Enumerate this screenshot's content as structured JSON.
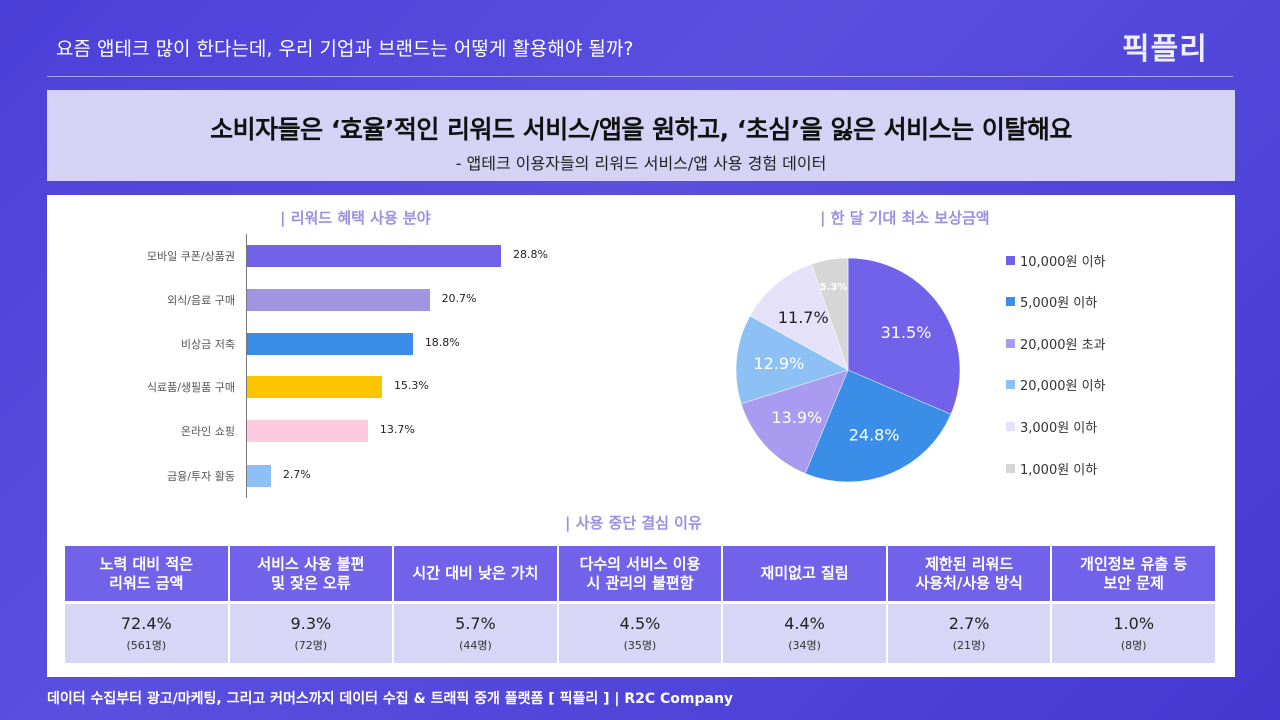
{
  "header": {
    "text": "요즘 앱테크 많이 한다는데, 우리 기업과 브랜드는 어떻게 활용해야 될까?",
    "logo": "픽플리"
  },
  "title": {
    "main": "소비자들은 ‘효율’적인 리워드 서비스/앱을 원하고, ‘초심’을 잃은 서비스는 이탈해요",
    "sub": "- 앱테크 이용자들의 리워드 서비스/앱 사용 경험 데이터"
  },
  "chart_data": [
    {
      "type": "bar",
      "orientation": "horizontal",
      "title": "| 리워드 혜택 사용 분야",
      "categories": [
        "모바일 쿠폰/상품권",
        "외식/음료 구매",
        "비상금 저축",
        "식료품/생필품 구매",
        "온라인 쇼핑",
        "금융/투자 활동"
      ],
      "values": [
        28.8,
        20.7,
        18.8,
        15.3,
        13.7,
        2.7
      ],
      "labels": [
        "28.8%",
        "20.7%",
        "18.8%",
        "15.3%",
        "13.7%",
        "2.7%"
      ],
      "colors": [
        "#7262ea",
        "#a195e0",
        "#3a8ee8",
        "#fdc400",
        "#fdc9de",
        "#8dc1f5"
      ]
    },
    {
      "type": "pie",
      "title": "| 한 달 기대 최소 보상금액",
      "categories": [
        "10,000원 이하",
        "5,000원 이하",
        "20,000원 초과",
        "20,000원 이하",
        "3,000원 이하",
        "1,000원 이하"
      ],
      "values": [
        31.5,
        24.8,
        13.9,
        12.9,
        11.7,
        5.3
      ],
      "labels": [
        "31.5%",
        "24.8%",
        "13.9%",
        "12.9%",
        "11.7%",
        "5.3%"
      ],
      "colors": [
        "#7262ea",
        "#3a8ee8",
        "#a99cf0",
        "#8dc1f5",
        "#e4e1f8",
        "#d6d6d6"
      ],
      "legend": "right"
    }
  ],
  "table": {
    "title": "| 사용 중단 결심 이유",
    "columns": [
      {
        "h1": "노력 대비 적은",
        "h2": "리워드 금액",
        "pct": "72.4%",
        "count": "(561명)"
      },
      {
        "h1": "서비스 사용 불편",
        "h2": "및 잦은 오류",
        "pct": "9.3%",
        "count": "(72명)"
      },
      {
        "h1": "시간 대비 낮은 가치",
        "h2": "",
        "pct": "5.7%",
        "count": "(44명)"
      },
      {
        "h1": "다수의 서비스 이용",
        "h2": "시 관리의 불편함",
        "pct": "4.5%",
        "count": "(35명)"
      },
      {
        "h1": "재미없고 질림",
        "h2": "",
        "pct": "4.4%",
        "count": "(34명)"
      },
      {
        "h1": "제한된 리워드",
        "h2": "사용처/사용 방식",
        "pct": "2.7%",
        "count": "(21명)"
      },
      {
        "h1": "개인정보 유출 등",
        "h2": "보안 문제",
        "pct": "1.0%",
        "count": "(8명)"
      }
    ]
  },
  "footer": "데이터 수집부터 광고/마케팅, 그리고 커머스까지 데이터 수집 & 트래픽 중개 플랫폼 [ 픽플리 ]  |  R2C Company"
}
